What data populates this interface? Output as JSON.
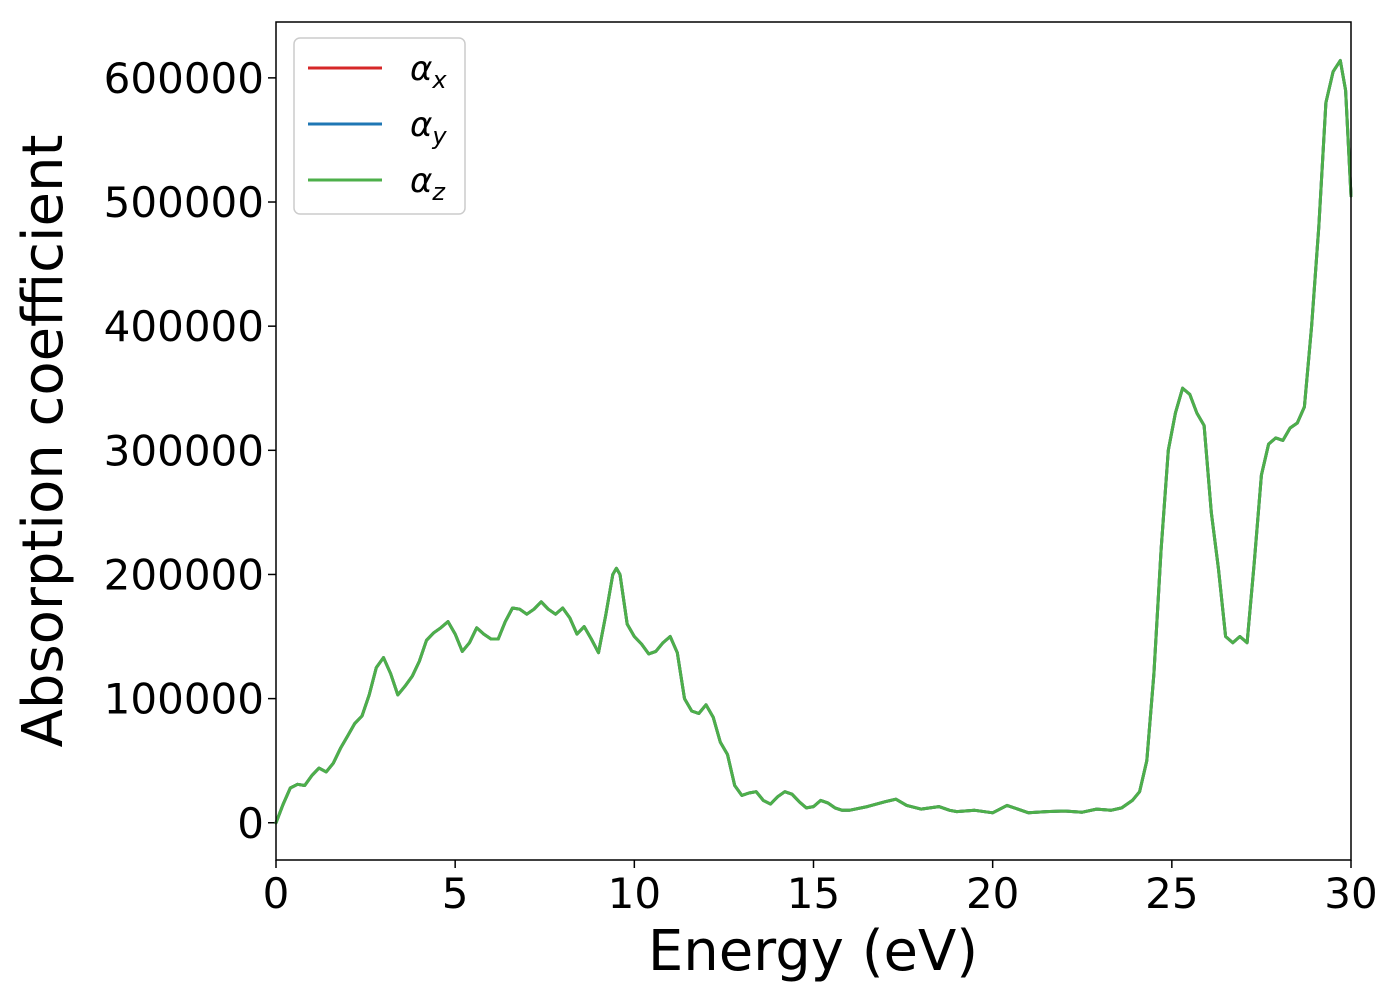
{
  "chart_data": {
    "type": "line",
    "title": "",
    "xlabel": "Energy (eV)",
    "ylabel": "Absorption coefficient",
    "xlim": [
      0,
      30
    ],
    "ylim": [
      -30000,
      645000
    ],
    "xticks": [
      0,
      5,
      10,
      15,
      20,
      25,
      30
    ],
    "xtick_labels": [
      "0",
      "5",
      "10",
      "15",
      "20",
      "25",
      "30"
    ],
    "yticks": [
      0,
      100000,
      200000,
      300000,
      400000,
      500000,
      600000
    ],
    "ytick_labels": [
      "0",
      "100000",
      "200000",
      "300000",
      "400000",
      "500000",
      "600000"
    ],
    "grid": false,
    "legend_position": "top-left",
    "series": [
      {
        "name": "α_x",
        "legend_base": "α",
        "legend_sub": "x",
        "color": "#d62728",
        "line_ref": "main"
      },
      {
        "name": "α_y",
        "legend_base": "α",
        "legend_sub": "y",
        "color": "#1f77b4",
        "line_ref": "main"
      },
      {
        "name": "α_z",
        "legend_base": "α",
        "legend_sub": "z",
        "color": "#4daf4a",
        "line_ref": "main"
      }
    ],
    "curve": {
      "x": [
        0,
        0.2,
        0.4,
        0.6,
        0.8,
        1.0,
        1.2,
        1.4,
        1.6,
        1.8,
        2.0,
        2.2,
        2.4,
        2.6,
        2.8,
        3.0,
        3.2,
        3.4,
        3.6,
        3.8,
        4.0,
        4.2,
        4.4,
        4.6,
        4.8,
        5.0,
        5.2,
        5.4,
        5.6,
        5.8,
        6.0,
        6.2,
        6.4,
        6.6,
        6.8,
        7.0,
        7.2,
        7.4,
        7.6,
        7.8,
        8.0,
        8.2,
        8.4,
        8.6,
        8.8,
        9.0,
        9.2,
        9.4,
        9.5,
        9.6,
        9.8,
        10.0,
        10.2,
        10.4,
        10.6,
        10.8,
        11.0,
        11.2,
        11.4,
        11.6,
        11.8,
        12.0,
        12.2,
        12.4,
        12.6,
        12.8,
        13.0,
        13.2,
        13.4,
        13.6,
        13.8,
        14.0,
        14.2,
        14.4,
        14.6,
        14.8,
        15.0,
        15.2,
        15.4,
        15.6,
        15.8,
        16.0,
        16.5,
        17.0,
        17.3,
        17.6,
        18.0,
        18.5,
        18.8,
        19.0,
        19.5,
        20.0,
        20.4,
        20.8,
        21.0,
        21.5,
        22.0,
        22.5,
        22.9,
        23.3,
        23.6,
        23.9,
        24.1,
        24.3,
        24.5,
        24.7,
        24.9,
        25.1,
        25.3,
        25.5,
        25.7,
        25.9,
        26.1,
        26.3,
        26.5,
        26.7,
        26.9,
        27.1,
        27.3,
        27.5,
        27.7,
        27.9,
        28.1,
        28.3,
        28.5,
        28.7,
        28.9,
        29.1,
        29.3,
        29.5,
        29.7,
        29.85,
        30.0
      ],
      "y": [
        0,
        15000,
        28000,
        31000,
        30000,
        38000,
        44000,
        41000,
        48000,
        60000,
        70000,
        80000,
        86000,
        103000,
        125000,
        133000,
        120000,
        103000,
        110000,
        118000,
        130000,
        147000,
        153000,
        157000,
        162000,
        152000,
        138000,
        145000,
        157000,
        152000,
        148000,
        148000,
        162000,
        173000,
        172000,
        168000,
        172000,
        178000,
        172000,
        168000,
        173000,
        165000,
        152000,
        158000,
        148000,
        137000,
        167000,
        200000,
        205000,
        200000,
        160000,
        150000,
        144000,
        136000,
        138000,
        145000,
        150000,
        137000,
        100000,
        90000,
        88000,
        95000,
        85000,
        65000,
        55000,
        30000,
        22000,
        24000,
        25000,
        18000,
        15000,
        21000,
        25000,
        23000,
        17000,
        12000,
        13000,
        18000,
        16000,
        12000,
        10000,
        10000,
        13000,
        17000,
        19000,
        14000,
        11000,
        13000,
        10000,
        9000,
        10000,
        8000,
        14000,
        10000,
        8000,
        9000,
        9500,
        8500,
        11000,
        10000,
        12000,
        18000,
        25000,
        50000,
        120000,
        220000,
        300000,
        330000,
        350000,
        345000,
        330000,
        320000,
        250000,
        205000,
        150000,
        145000,
        150000,
        145000,
        210000,
        280000,
        305000,
        310000,
        308000,
        318000,
        322000,
        335000,
        400000,
        480000,
        580000,
        605000,
        614000,
        590000,
        505000
      ]
    }
  }
}
